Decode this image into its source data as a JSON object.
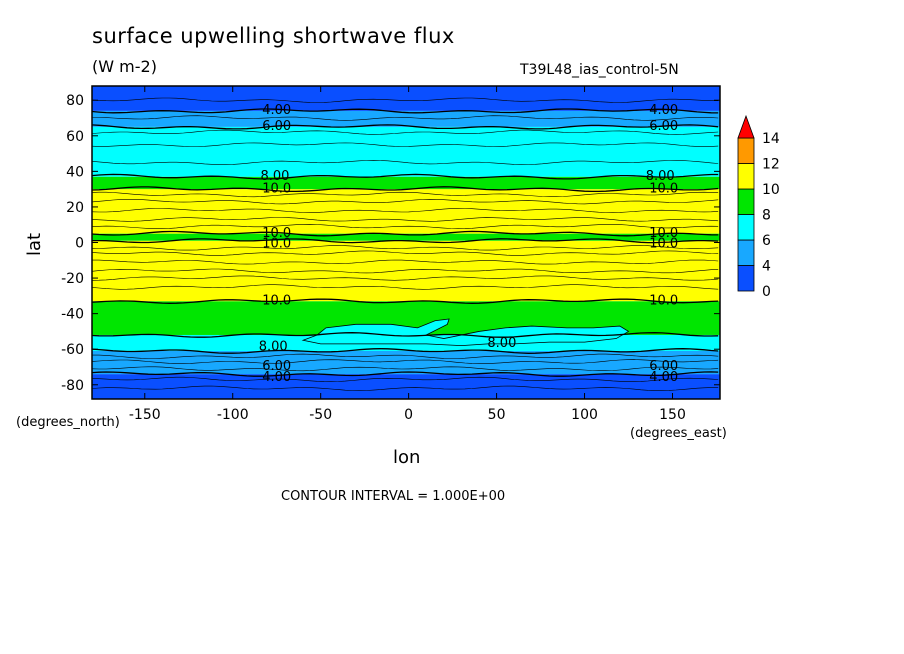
{
  "chart_data": {
    "type": "heatmap",
    "title": "surface upwelling shortwave flux",
    "units": "(W m-2)",
    "dataset": "T39L48_ias_control-5N",
    "xlabel": "lon",
    "ylabel": "lat",
    "x_units": "(degrees_east)",
    "y_units": "(degrees_north)",
    "xlim": [
      -180,
      177
    ],
    "ylim": [
      -88,
      88
    ],
    "x_ticks": [
      -150,
      -100,
      -50,
      0,
      50,
      100,
      150
    ],
    "y_ticks": [
      -80,
      -60,
      -40,
      -20,
      0,
      20,
      40,
      60,
      80
    ],
    "x_tick_labels": [
      "-150",
      "-100",
      "-50",
      "0",
      "50",
      "100",
      "150"
    ],
    "y_tick_labels": [
      "-80",
      "-60",
      "-40",
      "-20",
      "0",
      "20",
      "40",
      "60",
      "80"
    ],
    "contour_interval_text": "CONTOUR INTERVAL = 1.000E+00",
    "colorbar": {
      "levels": [
        0,
        4,
        6,
        8,
        10,
        12,
        14
      ],
      "labels": [
        "0",
        "4",
        "6",
        "8",
        "10",
        "12",
        "14"
      ],
      "colors": [
        "#0a4fff",
        "#18a8ff",
        "#00ffff",
        "#00e600",
        "#ffff00",
        "#ff9900",
        "#ff0000"
      ],
      "extend": "max"
    },
    "bands": [
      {
        "from": -88,
        "to": -74,
        "level": "0-4"
      },
      {
        "from": -74,
        "to": -61,
        "level": "4-6"
      },
      {
        "from": -61,
        "to": -52,
        "level": "6-8"
      },
      {
        "from": -52,
        "to": -33,
        "level": "8-10"
      },
      {
        "from": -33,
        "to": 1,
        "level": "10-12"
      },
      {
        "from": 1,
        "to": 5,
        "level": "8-10"
      },
      {
        "from": 5,
        "to": 30,
        "level": "10-12"
      },
      {
        "from": 30,
        "to": 37,
        "level": "8-10"
      },
      {
        "from": 37,
        "to": 65,
        "level": "6-8"
      },
      {
        "from": 65,
        "to": 74,
        "level": "4-6"
      },
      {
        "from": 74,
        "to": 88,
        "level": "0-4"
      }
    ],
    "contour_labels": [
      {
        "text": "4.00",
        "lon": -75,
        "lat": 75
      },
      {
        "text": "6.00",
        "lon": -75,
        "lat": 66
      },
      {
        "text": "4.00",
        "lon": 145,
        "lat": 75
      },
      {
        "text": "6.00",
        "lon": 145,
        "lat": 66
      },
      {
        "text": "8.00",
        "lon": -76,
        "lat": 38
      },
      {
        "text": "10.0",
        "lon": -75,
        "lat": 31
      },
      {
        "text": "8.00",
        "lon": 143,
        "lat": 38
      },
      {
        "text": "10.0",
        "lon": 145,
        "lat": 31
      },
      {
        "text": "10.0",
        "lon": -75,
        "lat": 6
      },
      {
        "text": "10.0",
        "lon": -75,
        "lat": 0
      },
      {
        "text": "10.0",
        "lon": 145,
        "lat": 6
      },
      {
        "text": "10.0",
        "lon": 145,
        "lat": 0
      },
      {
        "text": "10.0",
        "lon": -75,
        "lat": -32
      },
      {
        "text": "10.0",
        "lon": 145,
        "lat": -32
      },
      {
        "text": "8.00",
        "lon": -77,
        "lat": -58
      },
      {
        "text": "8.00",
        "lon": 53,
        "lat": -56
      },
      {
        "text": "6.00",
        "lon": 145,
        "lat": -69
      },
      {
        "text": "4.00",
        "lon": 145,
        "lat": -75
      },
      {
        "text": "6.00",
        "lon": -75,
        "lat": -69
      },
      {
        "text": "4.00",
        "lon": -75,
        "lat": -75
      }
    ]
  }
}
